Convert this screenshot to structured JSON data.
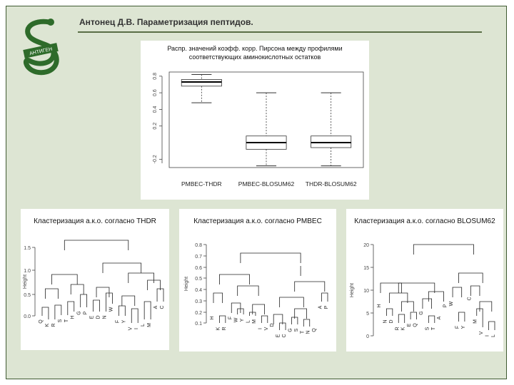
{
  "header": {
    "title": "Антонец Д.В. Параметризация пептидов."
  },
  "logo": {
    "text": "АНТИГЕН"
  },
  "colors": {
    "background": "#dde5d3",
    "accent": "#3f5a32",
    "panel": "#ffffff"
  },
  "boxplot": {
    "title_line1": "Распр. значений коэфф. корр. Пирсона между профилями",
    "title_line2": "соответствующих аминокислотных остатков",
    "chart_data": {
      "type": "boxplot",
      "categories": [
        "PMBEC-THDR",
        "PMBEC-BLOSUM62",
        "THDR-BLOSUM62"
      ],
      "y_ticks": [
        "-0.2",
        "0.2",
        "0.4",
        "0.6",
        "0.8"
      ],
      "ylim": [
        -0.3,
        0.85
      ],
      "boxes": [
        {
          "whisker_low": 0.48,
          "q1": 0.68,
          "median": 0.73,
          "q3": 0.76,
          "whisker_high": 0.82
        },
        {
          "whisker_low": -0.28,
          "q1": -0.08,
          "median": 0.0,
          "q3": 0.08,
          "whisker_high": 0.6
        },
        {
          "whisker_low": -0.28,
          "q1": -0.06,
          "median": 0.0,
          "q3": 0.08,
          "whisker_high": 0.6
        }
      ]
    }
  },
  "dendrograms": [
    {
      "title": "Кластеризация а.к.о. согласно THDR",
      "ylabel": "Height",
      "y_ticks": [
        "0.0",
        "0.5",
        "1.0",
        "1.5"
      ],
      "leaves": [
        "Q",
        "K",
        "R",
        "S",
        "T",
        "H",
        "G",
        "P",
        "E",
        "D",
        "N",
        "W",
        "F",
        "Y",
        "V",
        "I",
        "L",
        "M",
        "A",
        "C"
      ]
    },
    {
      "title": "Кластеризация а.к.о. согласно PMBEC",
      "ylabel": "Height",
      "y_ticks": [
        "0.1",
        "0.2",
        "0.3",
        "0.4",
        "0.5",
        "0.6",
        "0.7",
        "0.8"
      ],
      "leaves": [
        "H",
        "K",
        "R",
        "F",
        "W",
        "Y",
        "L",
        "M",
        "I",
        "V",
        "D",
        "E",
        "C",
        "G",
        "S",
        "T",
        "N",
        "Q",
        "A",
        "P"
      ]
    },
    {
      "title": "Кластеризация а.к.о. согласно BLOSUM62",
      "ylabel": "Height",
      "y_ticks": [
        "0",
        "5",
        "10",
        "15",
        "20"
      ],
      "leaves": [
        "H",
        "N",
        "D",
        "R",
        "K",
        "E",
        "Q",
        "G",
        "S",
        "T",
        "A",
        "P",
        "W",
        "F",
        "Y",
        "C",
        "M",
        "V",
        "I",
        "L"
      ]
    }
  ]
}
